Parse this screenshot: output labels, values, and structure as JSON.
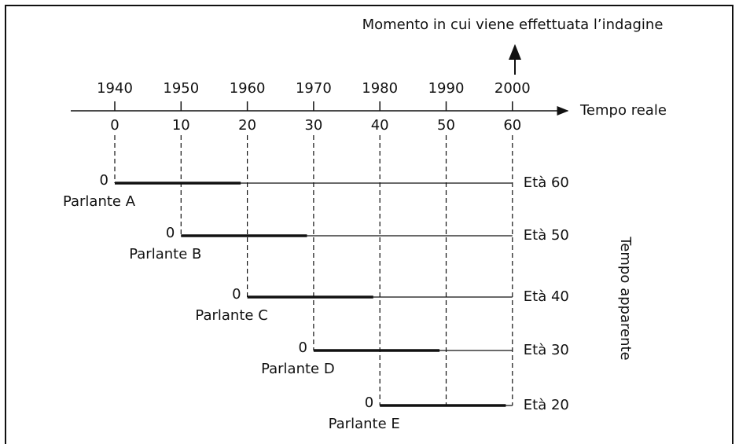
{
  "annotation": "Momento in cui viene effettuata l’indagine",
  "axis": {
    "label": "Tempo reale",
    "years": [
      "1940",
      "1950",
      "1960",
      "1970",
      "1980",
      "1990",
      "2000"
    ],
    "offsets": [
      "0",
      "10",
      "20",
      "30",
      "40",
      "50",
      "60"
    ]
  },
  "side_label": "Tempo apparente",
  "speakers": [
    {
      "start": "0",
      "name": "Parlante A",
      "age": "Età 60"
    },
    {
      "start": "0",
      "name": "Parlante B",
      "age": "Età 50"
    },
    {
      "start": "0",
      "name": "Parlante C",
      "age": "Età 40"
    },
    {
      "start": "0",
      "name": "Parlante D",
      "age": "Età 30"
    },
    {
      "start": "0",
      "name": "Parlante E",
      "age": "Età 20"
    }
  ]
}
